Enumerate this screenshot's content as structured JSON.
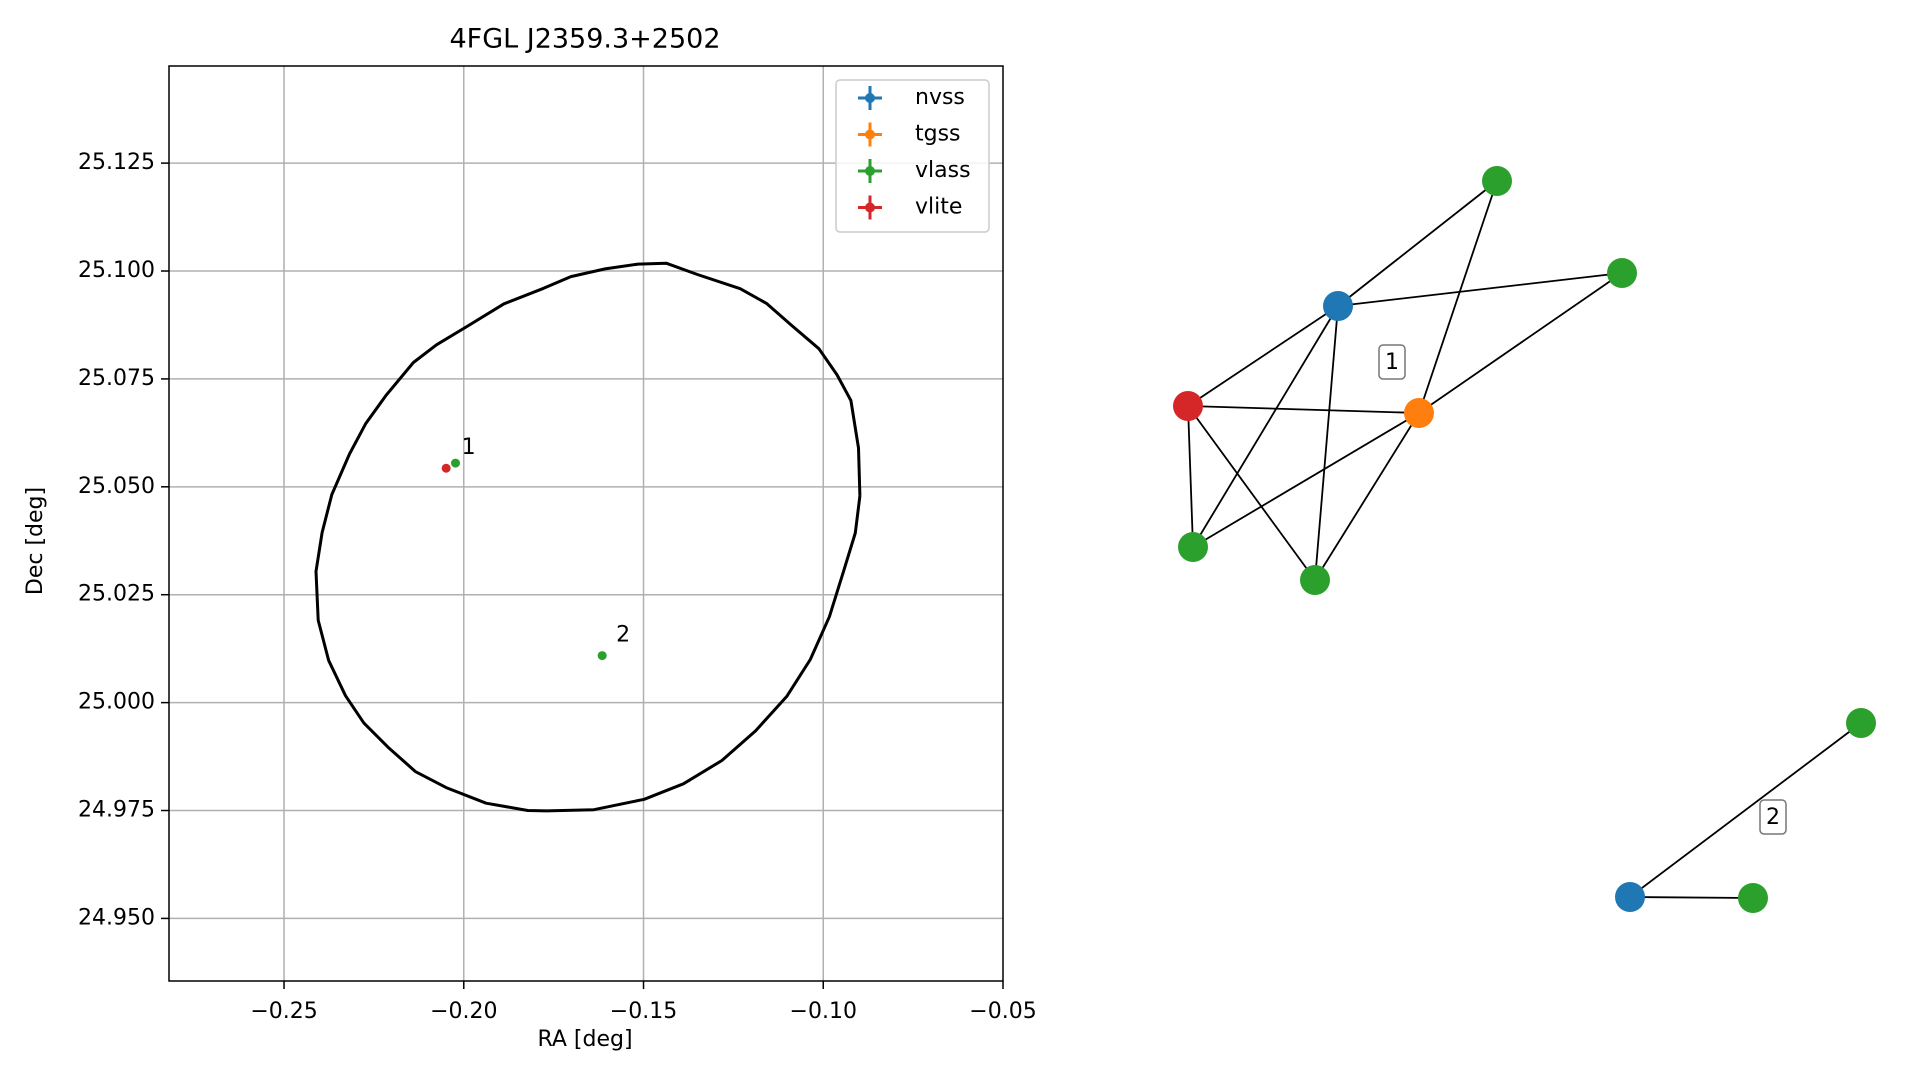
{
  "chart_data": [
    {
      "type": "scatter",
      "title": "4FGL J2359.3+2502",
      "xlabel": "RA [deg]",
      "ylabel": "Dec [deg]",
      "xlim": [
        -0.282,
        -0.05
      ],
      "ylim": [
        24.9355,
        25.1475
      ],
      "grid": true,
      "legend_position": "top-right",
      "xticks": [
        -0.25,
        -0.2,
        -0.15,
        -0.1,
        -0.05
      ],
      "xtick_labels": [
        "−0.25",
        "−0.20",
        "−0.15",
        "−0.10",
        "−0.05"
      ],
      "yticks": [
        24.95,
        24.975,
        25.0,
        25.025,
        25.05,
        25.075,
        25.1,
        25.125
      ],
      "ytick_labels": [
        "24.950",
        "24.975",
        "25.000",
        "25.025",
        "25.050",
        "25.075",
        "25.100",
        "25.125"
      ],
      "ellipse": {
        "points": [
          [
            -0.0898,
            25.0479
          ],
          [
            -0.0902,
            25.059
          ],
          [
            -0.0923,
            25.07
          ],
          [
            -0.0962,
            25.076
          ],
          [
            -0.1012,
            25.082
          ],
          [
            -0.1088,
            25.0874
          ],
          [
            -0.1158,
            25.0925
          ],
          [
            -0.1231,
            25.0959
          ],
          [
            -0.135,
            25.0992
          ],
          [
            -0.1437,
            25.1018
          ],
          [
            -0.1515,
            25.1016
          ],
          [
            -0.1607,
            25.1005
          ],
          [
            -0.1702,
            25.0987
          ],
          [
            -0.1778,
            25.096
          ],
          [
            -0.1888,
            25.0924
          ],
          [
            -0.1986,
            25.0874
          ],
          [
            -0.2076,
            25.0829
          ],
          [
            -0.214,
            25.0788
          ],
          [
            -0.2216,
            25.0712
          ],
          [
            -0.2273,
            25.0646
          ],
          [
            -0.2318,
            25.0576
          ],
          [
            -0.2367,
            25.0482
          ],
          [
            -0.2394,
            25.0394
          ],
          [
            -0.2411,
            25.0304
          ],
          [
            -0.2405,
            25.0191
          ],
          [
            -0.2376,
            25.0098
          ],
          [
            -0.2329,
            25.0016
          ],
          [
            -0.2278,
            24.9953
          ],
          [
            -0.2211,
            24.9897
          ],
          [
            -0.2134,
            24.984
          ],
          [
            -0.2049,
            24.9803
          ],
          [
            -0.1938,
            24.9767
          ],
          [
            -0.1822,
            24.975
          ],
          [
            -0.177,
            24.9749
          ],
          [
            -0.1638,
            24.9752
          ],
          [
            -0.1498,
            24.9776
          ],
          [
            -0.1389,
            24.9812
          ],
          [
            -0.1282,
            24.9866
          ],
          [
            -0.1188,
            24.9935
          ],
          [
            -0.1101,
            25.0015
          ],
          [
            -0.1036,
            25.01
          ],
          [
            -0.0983,
            25.0199
          ],
          [
            -0.0944,
            25.0303
          ],
          [
            -0.0911,
            25.0393
          ],
          [
            -0.0898,
            25.0479
          ]
        ]
      },
      "series": [
        {
          "name": "nvss",
          "color": "#1f77b4",
          "points": []
        },
        {
          "name": "tgss",
          "color": "#ff7f0e",
          "points": []
        },
        {
          "name": "vlass",
          "color": "#2ca02c",
          "points": [
            {
              "x": -0.2023,
              "y": 25.0555
            },
            {
              "x": -0.1615,
              "y": 25.0109
            }
          ]
        },
        {
          "name": "vlite",
          "color": "#d62728",
          "points": [
            {
              "x": -0.2049,
              "y": 25.0543
            }
          ]
        }
      ],
      "annotations": [
        {
          "text": "1",
          "x": -0.2045,
          "y": 25.0544
        },
        {
          "text": "2",
          "x": -0.1615,
          "y": 25.0109
        }
      ]
    },
    {
      "type": "network",
      "nodes": [
        {
          "id": "a",
          "color": "#1f77b4"
        },
        {
          "id": "b",
          "color": "#ff7f0e"
        },
        {
          "id": "c",
          "color": "#2ca02c"
        },
        {
          "id": "d",
          "color": "#2ca02c"
        },
        {
          "id": "e",
          "color": "#d62728"
        },
        {
          "id": "f",
          "color": "#2ca02c"
        },
        {
          "id": "g",
          "color": "#2ca02c"
        },
        {
          "id": "h",
          "color": "#1f77b4"
        },
        {
          "id": "i",
          "color": "#2ca02c"
        },
        {
          "id": "j",
          "color": "#2ca02c"
        }
      ],
      "edges": [
        [
          "a",
          "c"
        ],
        [
          "a",
          "d"
        ],
        [
          "a",
          "e"
        ],
        [
          "a",
          "f"
        ],
        [
          "a",
          "g"
        ],
        [
          "c",
          "b"
        ],
        [
          "d",
          "b"
        ],
        [
          "e",
          "b"
        ],
        [
          "f",
          "b"
        ],
        [
          "g",
          "b"
        ],
        [
          "e",
          "f"
        ],
        [
          "e",
          "g"
        ],
        [
          "h",
          "i"
        ],
        [
          "h",
          "j"
        ]
      ],
      "group_labels": [
        "1",
        "2"
      ]
    }
  ]
}
